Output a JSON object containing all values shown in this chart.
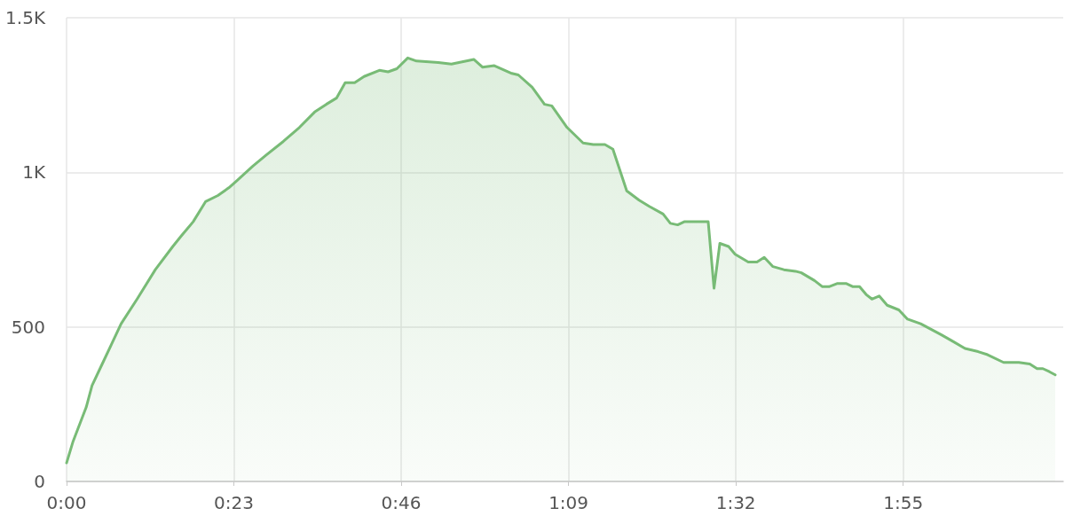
{
  "chart_data": {
    "type": "area",
    "x": [
      0,
      0.9,
      2.7,
      3.5,
      4.9,
      6.1,
      7.5,
      9.7,
      12.2,
      14.6,
      15.8,
      17.4,
      19.1,
      20.8,
      22.3,
      23.5,
      25.6,
      27.4,
      29.8,
      32,
      34.1,
      35.7,
      37.1,
      38.3,
      39.6,
      40.9,
      43,
      44.2,
      45.4,
      46.9,
      48.1,
      51.1,
      52.9,
      56,
      57.2,
      58.8,
      61.2,
      62.1,
      64,
      65.7,
      66.7,
      68.8,
      71,
      72.4,
      74,
      75.1,
      77,
      78.7,
      80.1,
      82,
      83,
      84,
      84.9,
      88.2,
      89,
      89.8,
      91,
      91.9,
      93.7,
      94.9,
      95.9,
      97.1,
      98.6,
      100.2,
      101,
      102.8,
      103.9,
      104.8,
      105.9,
      107.2,
      108.1,
      109,
      109.9,
      110.7,
      111.7,
      112.8,
      114.4,
      115.6,
      117.4,
      119,
      120.2,
      121.7,
      123.5,
      125.3,
      126.6,
      128.8,
      130.9,
      132.4,
      133.4,
      134.2,
      135.1,
      135.9
    ],
    "series": [
      {
        "color": "#78bb76",
        "values": [
          60,
          130,
          240,
          310,
          380,
          440,
          510,
          590,
          685,
          760,
          795,
          840,
          905,
          925,
          950,
          975,
          1020,
          1055,
          1100,
          1145,
          1195,
          1220,
          1240,
          1290,
          1290,
          1310,
          1330,
          1325,
          1335,
          1370,
          1360,
          1355,
          1350,
          1365,
          1340,
          1345,
          1320,
          1315,
          1275,
          1220,
          1215,
          1145,
          1095,
          1090,
          1090,
          1075,
          940,
          910,
          890,
          865,
          835,
          830,
          840,
          840,
          625,
          770,
          760,
          735,
          710,
          710,
          725,
          695,
          685,
          680,
          675,
          650,
          630,
          630,
          640,
          640,
          630,
          630,
          605,
          590,
          600,
          570,
          555,
          525,
          510,
          490,
          475,
          455,
          430,
          420,
          410,
          385,
          385,
          380,
          365,
          365,
          355,
          345
        ]
      }
    ],
    "xlim": [
      0,
      137
    ],
    "xticks": [
      {
        "value": 0,
        "label": "0:00"
      },
      {
        "value": 23,
        "label": "0:23"
      },
      {
        "value": 46,
        "label": "0:46"
      },
      {
        "value": 69,
        "label": "1:09"
      },
      {
        "value": 92,
        "label": "1:32"
      },
      {
        "value": 115,
        "label": "1:55"
      }
    ],
    "ylim": [
      0,
      1500
    ],
    "yticks": [
      0,
      500,
      {
        "value": 1000,
        "label": "1K"
      },
      {
        "value": 1500,
        "label": "1.5K"
      }
    ],
    "grid": true,
    "marker": "none",
    "line_style": "solid"
  }
}
